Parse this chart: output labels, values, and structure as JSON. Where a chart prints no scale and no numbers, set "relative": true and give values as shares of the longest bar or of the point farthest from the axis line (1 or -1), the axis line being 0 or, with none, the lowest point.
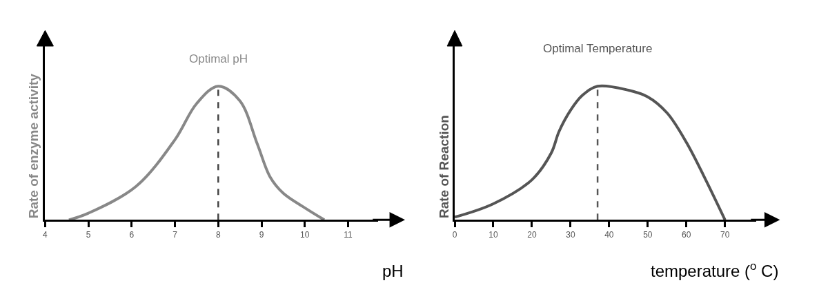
{
  "chart_data": [
    {
      "type": "line",
      "relative": true,
      "xlabel": "pH",
      "ylabel": "Rate of enzyme activity",
      "xlim": [
        4,
        11.7
      ],
      "xticks": [
        4,
        5,
        6,
        7,
        8,
        9,
        10,
        11
      ],
      "x": [
        4.55,
        5,
        6.1,
        7,
        7.5,
        8,
        8.5,
        8.9,
        9.2,
        9.5,
        10,
        10.45
      ],
      "series": [
        {
          "color": "#888888",
          "values": [
            0,
            0.05,
            0.25,
            0.6,
            0.87,
            1,
            0.89,
            0.57,
            0.32,
            0.2,
            0.09,
            0
          ]
        }
      ],
      "ref_lines": [
        {
          "axis": "x",
          "value": 8,
          "color": "#444444",
          "line_style": "dashed"
        }
      ],
      "annotations": [
        {
          "text": "Optimal pH",
          "x": 8,
          "y": 1
        }
      ]
    },
    {
      "type": "line",
      "relative": true,
      "xlabel": "temperature ($^{o}$ C)",
      "ylabel": "Rate of Reaction",
      "xlim": [
        0,
        78
      ],
      "xticks": [
        0,
        10,
        20,
        30,
        40,
        50,
        60,
        70
      ],
      "x": [
        0,
        10,
        20,
        25,
        27,
        30,
        33,
        37,
        45,
        50,
        55,
        60,
        65,
        70
      ],
      "series": [
        {
          "color": "#555555",
          "values": [
            0.02,
            0.12,
            0.3,
            0.5,
            0.66,
            0.82,
            0.93,
            1,
            0.97,
            0.92,
            0.8,
            0.58,
            0.3,
            0
          ]
        }
      ],
      "ref_lines": [
        {
          "axis": "x",
          "value": 37,
          "color": "#555555",
          "line_style": "dashed"
        }
      ],
      "annotations": [
        {
          "text": "Optimal Temperature",
          "x": 37,
          "y": 1
        }
      ]
    }
  ]
}
